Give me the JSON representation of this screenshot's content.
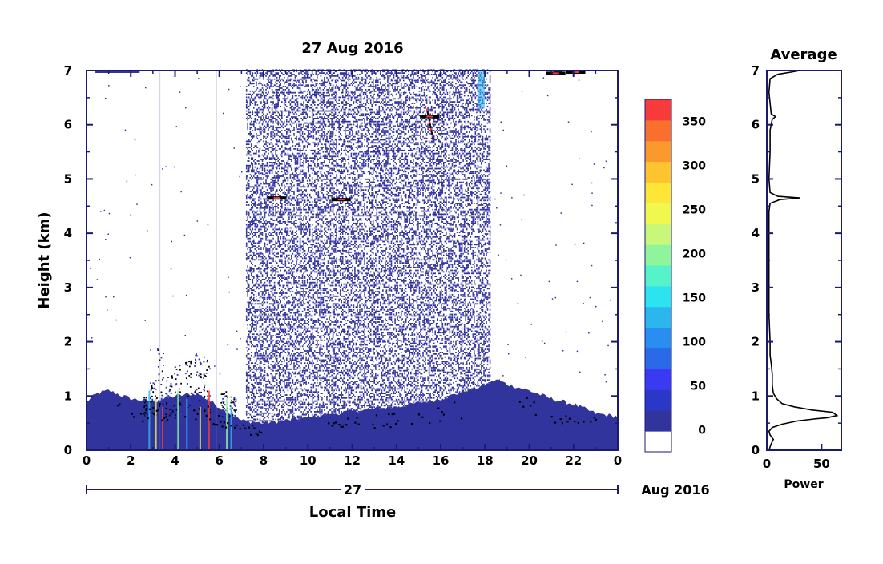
{
  "chart_data": [
    {
      "type": "heatmap",
      "title": "27 Aug 2016",
      "xlabel": "Local Time",
      "ylabel": "Height (km)",
      "x_ticks": [
        "0",
        "2",
        "4",
        "6",
        "8",
        "10",
        "12",
        "14",
        "16",
        "18",
        "20",
        "22",
        "0"
      ],
      "y_ticks": [
        "0",
        "1",
        "2",
        "3",
        "4",
        "5",
        "6",
        "7"
      ],
      "xlim": [
        0,
        24
      ],
      "ylim": [
        0,
        7
      ],
      "date_day_label": "27",
      "date_label": "Aug 2016",
      "colorbar": {
        "ticks": [
          "0",
          "50",
          "100",
          "150",
          "200",
          "250",
          "300",
          "350"
        ],
        "range": [
          -25,
          375
        ],
        "colors": [
          "#ffffff",
          "#32349e",
          "#2b37c6",
          "#3a3af2",
          "#2a6ae6",
          "#2a8ef0",
          "#2bb6ec",
          "#2ce4f0",
          "#56f2c8",
          "#8ef59a",
          "#c8f77a",
          "#f0f850",
          "#fde636",
          "#fcc42e",
          "#fb9a2c",
          "#f9702c",
          "#f73a3a"
        ]
      },
      "regions": {
        "sparse_speckle_hours": [
          7.2,
          18.2
        ],
        "boundary_layer_top_km": [
          [
            0,
            0.9
          ],
          [
            0.5,
            1.05
          ],
          [
            1,
            1.1
          ],
          [
            2,
            0.95
          ],
          [
            3,
            0.9
          ],
          [
            4,
            1.0
          ],
          [
            5,
            1.05
          ],
          [
            6,
            0.8
          ],
          [
            7,
            0.55
          ],
          [
            8,
            0.5
          ],
          [
            10,
            0.6
          ],
          [
            12,
            0.72
          ],
          [
            14,
            0.8
          ],
          [
            16,
            0.95
          ],
          [
            18,
            1.2
          ],
          [
            18.5,
            1.3
          ],
          [
            19,
            1.22
          ],
          [
            20,
            1.1
          ],
          [
            21,
            0.95
          ],
          [
            22,
            0.85
          ],
          [
            23,
            0.68
          ],
          [
            24,
            0.62
          ]
        ],
        "echo_features": [
          {
            "hour": 8.6,
            "height_km": 4.65
          },
          {
            "hour": 11.5,
            "height_km": 4.62
          },
          {
            "hour": 15.5,
            "height_km": 6.15
          },
          {
            "hour": 21.2,
            "height_km": 6.95
          },
          {
            "hour": 22.1,
            "height_km": 6.97
          }
        ]
      }
    },
    {
      "type": "line",
      "title": "Average",
      "xlabel": "Power",
      "x_ticks": [
        "0",
        "50"
      ],
      "y_ticks": [
        "0",
        "1",
        "2",
        "3",
        "4",
        "5",
        "6",
        "7"
      ],
      "xlim": [
        0,
        68
      ],
      "ylim": [
        0,
        7
      ],
      "series": [
        {
          "points": [
            [
              2,
              0.0
            ],
            [
              4,
              0.12
            ],
            [
              6,
              0.2
            ],
            [
              3,
              0.28
            ],
            [
              2,
              0.35
            ],
            [
              5,
              0.42
            ],
            [
              14,
              0.48
            ],
            [
              28,
              0.54
            ],
            [
              45,
              0.58
            ],
            [
              55,
              0.6
            ],
            [
              64,
              0.64
            ],
            [
              60,
              0.7
            ],
            [
              42,
              0.74
            ],
            [
              25,
              0.8
            ],
            [
              14,
              0.86
            ],
            [
              9,
              0.95
            ],
            [
              6,
              1.05
            ],
            [
              5,
              1.2
            ],
            [
              5,
              1.4
            ],
            [
              4,
              1.6
            ],
            [
              3,
              1.75
            ],
            [
              3,
              2.0
            ],
            [
              2,
              2.5
            ],
            [
              2,
              3.0
            ],
            [
              2,
              3.5
            ],
            [
              2,
              4.0
            ],
            [
              2,
              4.4
            ],
            [
              3,
              4.55
            ],
            [
              12,
              4.62
            ],
            [
              30,
              4.65
            ],
            [
              10,
              4.68
            ],
            [
              3,
              4.75
            ],
            [
              2,
              5.0
            ],
            [
              3,
              5.5
            ],
            [
              3,
              5.9
            ],
            [
              5,
              6.1
            ],
            [
              8,
              6.15
            ],
            [
              4,
              6.2
            ],
            [
              3,
              6.4
            ],
            [
              2,
              6.6
            ],
            [
              3,
              6.85
            ],
            [
              10,
              6.93
            ],
            [
              22,
              6.97
            ],
            [
              30,
              7.0
            ]
          ]
        }
      ]
    }
  ]
}
